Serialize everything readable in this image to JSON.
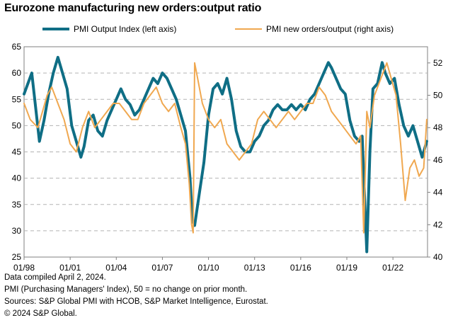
{
  "title": "Eurozone manufacturing new orders:output ratio",
  "colors": {
    "output": "#0f6e85",
    "ratio": "#f0a850",
    "grid": "#b3b3b3",
    "axis": "#808080"
  },
  "chart_data": {
    "type": "line",
    "title": "Eurozone manufacturing new orders:output ratio",
    "legend_position": "top",
    "grid": true,
    "x_ticks": [
      "01/98",
      "01/01",
      "01/04",
      "01/07",
      "01/10",
      "01/13",
      "01/16",
      "01/19",
      "01/22"
    ],
    "x_range": [
      1998.0,
      2024.25
    ],
    "left_axis": {
      "ylim": [
        25,
        65
      ],
      "ticks": [
        "25",
        "30",
        "35",
        "40",
        "45",
        "50",
        "55",
        "60",
        "65"
      ]
    },
    "right_axis": {
      "ylim": [
        40,
        53
      ],
      "ticks": [
        "40",
        "42",
        "44",
        "46",
        "48",
        "50",
        "52"
      ]
    },
    "series": [
      {
        "name": "PMI Output Index (left axis)",
        "axis": "left",
        "x": [
          1998.0,
          1998.5,
          1999.0,
          1999.3,
          1999.6,
          1999.9,
          2000.2,
          2000.5,
          2000.8,
          2001.1,
          2001.4,
          2001.7,
          2001.9,
          2002.2,
          2002.5,
          2002.8,
          2003.1,
          2003.4,
          2003.7,
          2004.0,
          2004.3,
          2004.6,
          2004.9,
          2005.2,
          2005.5,
          2005.8,
          2006.1,
          2006.4,
          2006.7,
          2007.0,
          2007.3,
          2007.6,
          2007.9,
          2008.2,
          2008.5,
          2008.8,
          2008.95,
          2009.1,
          2009.4,
          2009.7,
          2010.0,
          2010.3,
          2010.6,
          2010.9,
          2011.2,
          2011.5,
          2011.8,
          2012.1,
          2012.4,
          2012.7,
          2013.0,
          2013.3,
          2013.6,
          2013.9,
          2014.2,
          2014.5,
          2014.8,
          2015.1,
          2015.4,
          2015.7,
          2016.0,
          2016.3,
          2016.6,
          2016.9,
          2017.2,
          2017.5,
          2017.8,
          2018.0,
          2018.3,
          2018.6,
          2018.9,
          2019.2,
          2019.5,
          2019.8,
          2020.0,
          2020.2,
          2020.3,
          2020.5,
          2020.7,
          2021.0,
          2021.3,
          2021.5,
          2021.8,
          2022.1,
          2022.4,
          2022.7,
          2023.0,
          2023.3,
          2023.6,
          2023.9,
          2024.2
        ],
        "values": [
          56,
          60,
          47,
          51,
          56,
          60,
          63,
          60,
          57,
          50,
          47,
          44,
          46,
          51,
          52,
          49,
          48,
          51,
          53,
          55,
          57,
          55,
          54,
          52,
          53,
          55,
          57,
          59,
          58,
          60,
          59,
          57,
          55,
          52,
          49,
          40,
          32,
          31,
          37,
          43,
          52,
          57,
          58,
          56,
          59,
          55,
          49,
          46,
          45,
          45,
          47,
          48,
          50,
          51,
          53,
          54,
          53,
          53,
          54,
          53,
          54,
          53,
          55,
          56,
          58,
          60,
          62,
          61,
          59,
          57,
          56,
          51,
          48,
          47,
          48,
          33,
          26,
          45,
          57,
          58,
          62,
          60,
          58,
          59,
          54,
          50,
          48,
          50,
          47,
          44,
          47
        ]
      },
      {
        "name": "PMI new orders/output (right axis)",
        "axis": "right",
        "x": [
          1998.0,
          1998.4,
          1998.9,
          1999.2,
          1999.5,
          1999.8,
          2000.2,
          2000.6,
          2001.0,
          2001.4,
          2001.8,
          2002.2,
          2002.6,
          2003.0,
          2003.4,
          2003.8,
          2004.2,
          2004.6,
          2005.0,
          2005.4,
          2005.8,
          2006.2,
          2006.6,
          2007.0,
          2007.4,
          2007.8,
          2008.2,
          2008.5,
          2008.75,
          2008.9,
          2009.0,
          2009.1,
          2009.3,
          2009.6,
          2010.0,
          2010.4,
          2010.8,
          2011.2,
          2011.6,
          2012.0,
          2012.4,
          2012.8,
          2013.2,
          2013.6,
          2014.0,
          2014.4,
          2014.8,
          2015.2,
          2015.6,
          2016.0,
          2016.4,
          2016.8,
          2017.2,
          2017.6,
          2018.0,
          2018.4,
          2018.8,
          2019.2,
          2019.6,
          2019.9,
          2020.1,
          2020.3,
          2020.5,
          2020.8,
          2021.2,
          2021.6,
          2021.9,
          2022.2,
          2022.5,
          2022.8,
          2023.1,
          2023.4,
          2023.7,
          2024.0,
          2024.2
        ],
        "values": [
          49.5,
          48.5,
          48,
          49,
          50,
          50.5,
          49.5,
          48.5,
          47,
          46.5,
          48,
          49,
          48,
          48.5,
          49,
          49.5,
          49.5,
          49,
          48.5,
          48.5,
          49.5,
          50,
          50.5,
          49.5,
          49,
          49.5,
          48,
          47,
          44.5,
          42,
          41.5,
          52,
          51,
          49.5,
          48.5,
          48,
          48.5,
          47,
          46.5,
          46,
          46.5,
          47,
          48.5,
          49,
          48.5,
          48,
          48.5,
          49,
          48.5,
          49,
          49.5,
          49.5,
          50.5,
          50,
          49,
          48.5,
          48,
          47.5,
          47,
          47.5,
          41.5,
          49,
          48,
          50,
          51,
          52,
          51,
          50,
          47,
          43.5,
          45.5,
          46,
          45,
          45.5,
          48.5
        ]
      }
    ]
  },
  "notes": [
    "Data compiled April 2, 2024.",
    "PMI (Purchasing Managers' Index), 50 = no change on prior month.",
    "Sources: S&P Global PMI with HCOB, S&P Market Intelligence, Eurostat.",
    "© 2024 S&P Global."
  ]
}
